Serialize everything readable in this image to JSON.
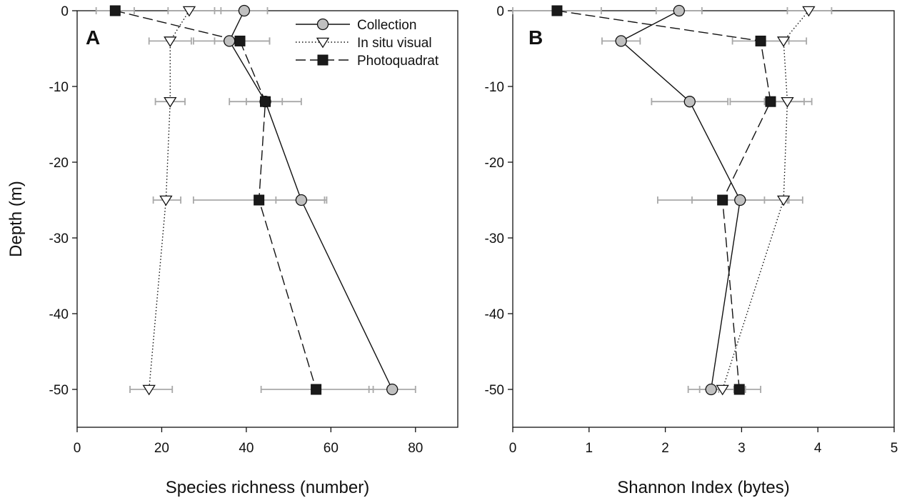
{
  "chart_data": [
    {
      "type": "line",
      "panel_label": "A",
      "xlabel": "Species richness (number)",
      "ylabel": "Depth (m)",
      "xlim": [
        0,
        90
      ],
      "ylim": [
        -55,
        0
      ],
      "xticks": [
        0,
        20,
        40,
        60,
        80
      ],
      "yticks": [
        0,
        -10,
        -20,
        -30,
        -40,
        -50
      ],
      "legend_position": "top-right",
      "grid": false,
      "series": [
        {
          "name": "Collection",
          "marker": "circle",
          "line_style": "solid",
          "points": [
            {
              "x": 39.5,
              "y": 0,
              "err_low": 32.5,
              "err_high": 45
            },
            {
              "x": 36,
              "y": -4,
              "err_low": 27.5,
              "err_high": 45.5
            },
            {
              "x": 44.5,
              "y": -12,
              "err_low": 40,
              "err_high": 48.5
            },
            {
              "x": 53,
              "y": -25,
              "err_low": 47,
              "err_high": 59
            },
            {
              "x": 74.5,
              "y": -50,
              "err_low": 69,
              "err_high": 80
            }
          ]
        },
        {
          "name": "In situ visual",
          "marker": "triangle-down",
          "line_style": "dotted",
          "points": [
            {
              "x": 26.5,
              "y": 0,
              "err_low": 21.5,
              "err_high": 34
            },
            {
              "x": 22,
              "y": -4,
              "err_low": 17,
              "err_high": 27
            },
            {
              "x": 22,
              "y": -12,
              "err_low": 18.5,
              "err_high": 25.5
            },
            {
              "x": 21,
              "y": -25,
              "err_low": 18,
              "err_high": 24.5
            },
            {
              "x": 17,
              "y": -50,
              "err_low": 12.5,
              "err_high": 22.5
            }
          ]
        },
        {
          "name": "Photoquadrat",
          "marker": "square",
          "line_style": "dashed",
          "points": [
            {
              "x": 9,
              "y": 0,
              "err_low": 4.5,
              "err_high": 13.5
            },
            {
              "x": 38.5,
              "y": -4,
              "err_low": 32.5,
              "err_high": 45.5
            },
            {
              "x": 44.5,
              "y": -12,
              "err_low": 36,
              "err_high": 53
            },
            {
              "x": 43,
              "y": -25,
              "err_low": 27.5,
              "err_high": 58.5
            },
            {
              "x": 56.5,
              "y": -50,
              "err_low": 43.5,
              "err_high": 70
            }
          ]
        }
      ]
    },
    {
      "type": "line",
      "panel_label": "B",
      "xlabel": "Shannon Index (bytes)",
      "ylabel": "",
      "xlim": [
        0,
        5
      ],
      "ylim": [
        -55,
        0
      ],
      "xticks": [
        0,
        1,
        2,
        3,
        4,
        5
      ],
      "yticks": [
        0,
        -10,
        -20,
        -30,
        -40,
        -50
      ],
      "grid": false,
      "series": [
        {
          "name": "Collection",
          "marker": "circle",
          "line_style": "solid",
          "points": [
            {
              "x": 2.18,
              "y": 0,
              "err_low": 1.88,
              "err_high": 2.48
            },
            {
              "x": 1.42,
              "y": -4,
              "err_low": 1.17,
              "err_high": 1.67
            },
            {
              "x": 2.32,
              "y": -12,
              "err_low": 1.82,
              "err_high": 2.82
            },
            {
              "x": 2.98,
              "y": -25,
              "err_low": 2.35,
              "err_high": 3.62
            },
            {
              "x": 2.6,
              "y": -50,
              "err_low": 2.3,
              "err_high": 2.9
            }
          ]
        },
        {
          "name": "In situ visual",
          "marker": "triangle-down",
          "line_style": "dotted",
          "points": [
            {
              "x": 3.88,
              "y": 0,
              "err_low": 3.6,
              "err_high": 4.18
            },
            {
              "x": 3.55,
              "y": -4,
              "err_low": 3.25,
              "err_high": 3.85
            },
            {
              "x": 3.6,
              "y": -12,
              "err_low": 3.3,
              "err_high": 3.92
            },
            {
              "x": 3.55,
              "y": -25,
              "err_low": 3.3,
              "err_high": 3.8
            },
            {
              "x": 2.75,
              "y": -50,
              "err_low": 2.45,
              "err_high": 3.05
            }
          ]
        },
        {
          "name": "Photoquadrat",
          "marker": "square",
          "line_style": "dashed",
          "points": [
            {
              "x": 0.58,
              "y": 0,
              "err_low": 0.0,
              "err_high": 1.16
            },
            {
              "x": 3.25,
              "y": -4,
              "err_low": 2.88,
              "err_high": 3.62
            },
            {
              "x": 3.38,
              "y": -12,
              "err_low": 2.85,
              "err_high": 3.82
            },
            {
              "x": 2.75,
              "y": -25,
              "err_low": 1.9,
              "err_high": 3.6
            },
            {
              "x": 2.97,
              "y": -50,
              "err_low": 2.7,
              "err_high": 3.25
            }
          ]
        }
      ]
    }
  ],
  "colors": {
    "collection_fill": "#c0c0c0",
    "triangle_fill": "#ffffff",
    "square_fill": "#1a1a1a",
    "line": "#111111",
    "error_bar": "#a8a8a8",
    "axis": "#111111"
  }
}
